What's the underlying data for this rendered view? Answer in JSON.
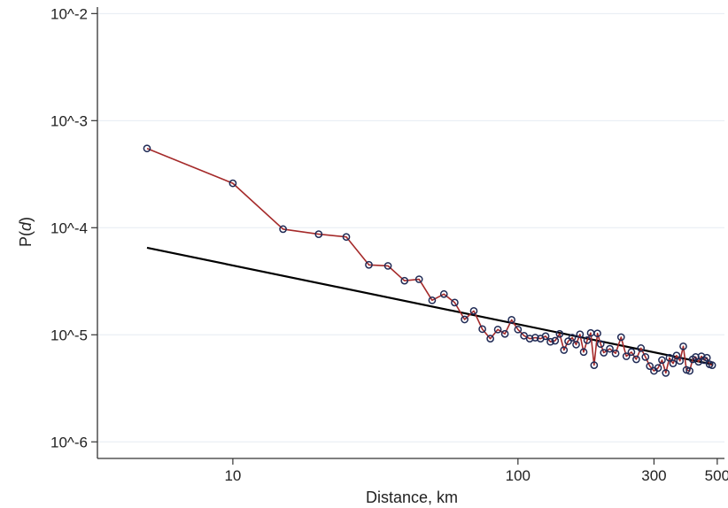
{
  "chart_data": {
    "type": "scatter",
    "title": "",
    "xlabel": "Distance, km",
    "ylabel_main": "P",
    "ylabel_var": "d",
    "xscale": "log",
    "yscale": "log",
    "xlim": [
      3.35,
      530
    ],
    "ylim": [
      7e-07,
      0.0115
    ],
    "x_ticks": [
      {
        "value": 10,
        "label": "10"
      },
      {
        "value": 100,
        "label": "100"
      },
      {
        "value": 300,
        "label": "300"
      },
      {
        "value": 500,
        "label": "500"
      }
    ],
    "y_ticks": [
      {
        "value": 0.01,
        "label": "10^-2"
      },
      {
        "value": 0.001,
        "label": "10^-3"
      },
      {
        "value": 0.0001,
        "label": "10^-4"
      },
      {
        "value": 1e-05,
        "label": "10^-5"
      },
      {
        "value": 1e-06,
        "label": "10^-6"
      }
    ],
    "grid": "horizontal",
    "colors": {
      "empirical_line": "#a52a2a",
      "marker_edge": "#1f2a55",
      "fit_line": "#000000",
      "grid": "#e6ecf2",
      "axis": "#333333"
    },
    "series": [
      {
        "style": "line-with-markers",
        "x": [
          5,
          10,
          15,
          20,
          25,
          30,
          35,
          40,
          45,
          50,
          55,
          60,
          65,
          70,
          75,
          80,
          85,
          90,
          95,
          100,
          105,
          110,
          115,
          120,
          125,
          130,
          135,
          140,
          145,
          150,
          155,
          160,
          165,
          170,
          175,
          180,
          185,
          190,
          195,
          200,
          210,
          220,
          230,
          240,
          250,
          260,
          270,
          280,
          290,
          300,
          310,
          320,
          330,
          340,
          350,
          360,
          370,
          380,
          390,
          400,
          410,
          420,
          430,
          440,
          450,
          460,
          470,
          480
        ],
        "y": [
          0.00055,
          0.00026,
          9.7e-05,
          8.7e-05,
          8.2e-05,
          4.5e-05,
          4.4e-05,
          3.2e-05,
          3.3e-05,
          2.1e-05,
          2.4e-05,
          2e-05,
          1.39e-05,
          1.67e-05,
          1.13e-05,
          9.2e-06,
          1.12e-05,
          1.02e-05,
          1.38e-05,
          1.12e-05,
          9.8e-06,
          9.2e-06,
          9.4e-06,
          9.2e-06,
          9.7e-06,
          8.6e-06,
          8.8e-06,
          1.02e-05,
          7.2e-06,
          8.7e-06,
          9.4e-06,
          8.1e-06,
          1.01e-05,
          6.9e-06,
          8.9e-06,
          1.04e-05,
          5.2e-06,
          1.03e-05,
          8.2e-06,
          6.8e-06,
          7.4e-06,
          6.7e-06,
          9.5e-06,
          6.3e-06,
          6.9e-06,
          5.9e-06,
          7.5e-06,
          6.2e-06,
          5.1e-06,
          4.6e-06,
          4.9e-06,
          5.8e-06,
          4.4e-06,
          6.1e-06,
          5.4e-06,
          6.4e-06,
          5.7e-06,
          7.8e-06,
          4.7e-06,
          4.6e-06,
          5.9e-06,
          6.2e-06,
          5.6e-06,
          6.3e-06,
          5.8e-06,
          6.1e-06,
          5.3e-06,
          5.2e-06
        ]
      },
      {
        "style": "line",
        "x": [
          5,
          480
        ],
        "y": [
          6.5e-05,
          5.3e-06
        ]
      }
    ]
  }
}
